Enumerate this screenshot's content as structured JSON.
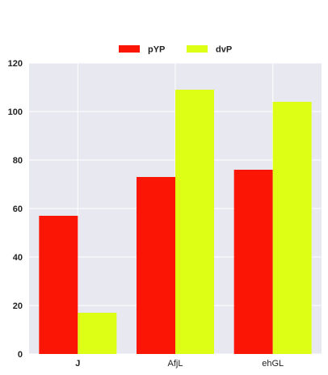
{
  "chart_data": {
    "type": "bar",
    "categories": [
      "J",
      "AfjL",
      "ehGL"
    ],
    "series": [
      {
        "name": "pYP",
        "values": [
          57,
          73,
          76
        ],
        "color": "#fa1505"
      },
      {
        "name": "dvP",
        "values": [
          17,
          109,
          104
        ],
        "color": "#dcff15"
      }
    ],
    "title": "",
    "xlabel": "",
    "ylabel": "",
    "ylim": [
      0,
      120
    ],
    "yticks": [
      0,
      20,
      40,
      60,
      80,
      100,
      120
    ],
    "grid": true,
    "legend_position": "top-center",
    "background_color": "#e8e8f0",
    "grid_color": "#ffffff"
  }
}
